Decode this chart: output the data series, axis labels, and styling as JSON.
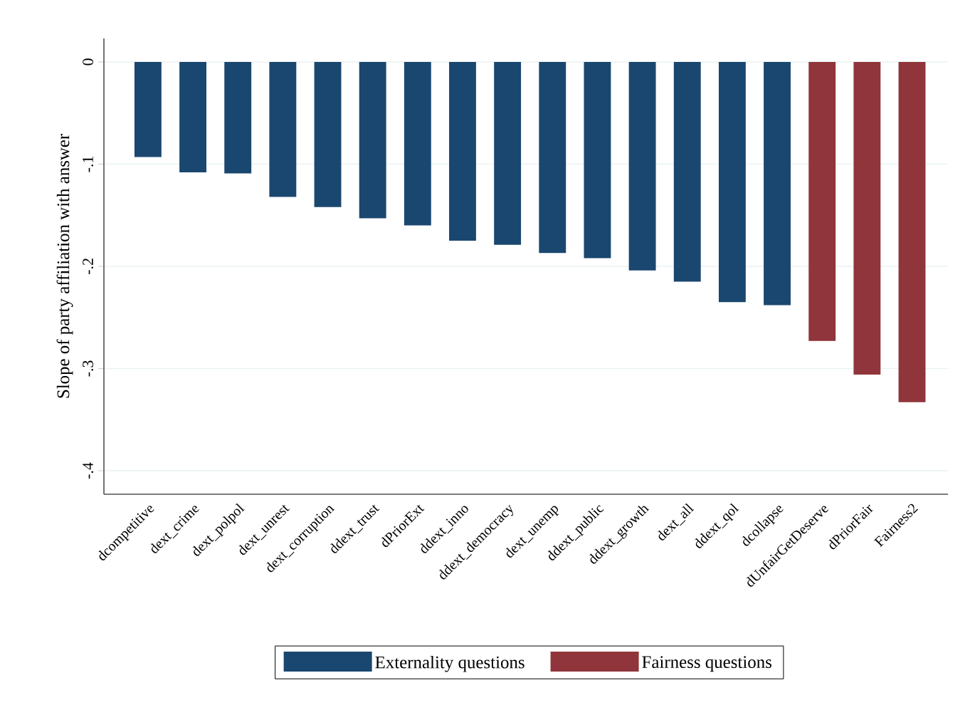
{
  "chart_data": {
    "type": "bar",
    "ylabel": "Slope of party affiliation with answer",
    "categories": [
      "dcompetitive",
      "dext_crime",
      "dext_polpol",
      "dext_unrest",
      "dext_corruption",
      "ddext_trust",
      "dPriorExt",
      "ddext_inno",
      "ddext_democracy",
      "dext_unemp",
      "ddext_public",
      "ddext_growth",
      "dext_all",
      "ddext_qol",
      "dcollapse",
      "dUnfairGetDeserve",
      "dPriorFair",
      "Fairness2"
    ],
    "series": [
      {
        "name": "Externality questions",
        "color": "#1a476f",
        "values": [
          -0.093,
          -0.108,
          -0.109,
          -0.132,
          -0.142,
          -0.153,
          -0.16,
          -0.175,
          -0.179,
          -0.187,
          -0.192,
          -0.204,
          -0.215,
          -0.235,
          -0.238,
          null,
          null,
          null
        ]
      },
      {
        "name": "Fairness questions",
        "color": "#90353b",
        "values": [
          null,
          null,
          null,
          null,
          null,
          null,
          null,
          null,
          null,
          null,
          null,
          null,
          null,
          null,
          null,
          -0.273,
          -0.306,
          -0.333
        ]
      }
    ],
    "ylim": [
      -0.423,
      0.023
    ],
    "yticks": [
      0,
      {
        "value": -0.1,
        "label": "-.1"
      },
      {
        "value": -0.2,
        "label": "-.2"
      },
      {
        "value": -0.3,
        "label": "-.3"
      },
      {
        "value": -0.4,
        "label": "-.4"
      }
    ],
    "grid": "y",
    "legend": "bottom"
  }
}
